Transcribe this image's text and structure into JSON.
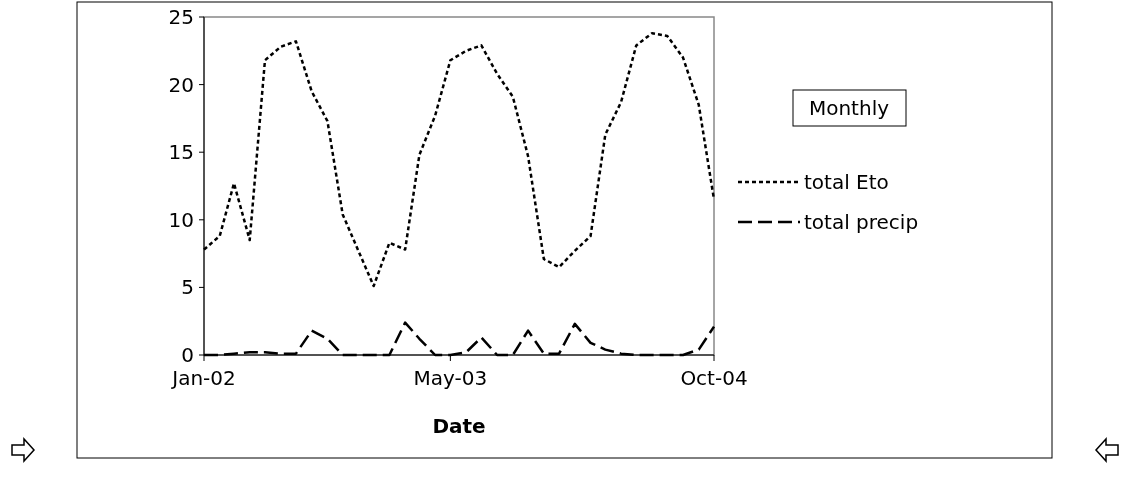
{
  "chart_data": {
    "type": "line",
    "xlabel": "Date",
    "legend_title": "Monthly",
    "legend": "right",
    "grid": false,
    "x": [
      "2002-01",
      "2002-02",
      "2002-03",
      "2002-04",
      "2002-05",
      "2002-06",
      "2002-07",
      "2002-08",
      "2002-09",
      "2002-10",
      "2002-11",
      "2002-12",
      "2003-01",
      "2003-02",
      "2003-03",
      "2003-04",
      "2003-05",
      "2003-06",
      "2003-07",
      "2003-08",
      "2003-09",
      "2003-10",
      "2003-11",
      "2003-12",
      "2004-01",
      "2004-02",
      "2004-03",
      "2004-04",
      "2004-05",
      "2004-06",
      "2004-07",
      "2004-08",
      "2004-09",
      "2004-10"
    ],
    "xlim": [
      "2002-01",
      "2004-10"
    ],
    "xticks": [
      {
        "value": "2002-01",
        "label": "Jan-02"
      },
      {
        "value": "2003-05",
        "label": "May-03"
      },
      {
        "value": "2004-10",
        "label": "Oct-04"
      }
    ],
    "ylim": [
      0,
      25
    ],
    "yticks": [
      0,
      5,
      10,
      15,
      20,
      25
    ],
    "series": [
      {
        "name": "total Eto",
        "color": "#000000",
        "line_style": "dotted",
        "values": [
          7.8,
          8.8,
          12.7,
          8.5,
          21.8,
          22.8,
          23.2,
          19.5,
          17.3,
          10.4,
          7.7,
          5.1,
          8.3,
          7.8,
          14.8,
          17.7,
          21.8,
          22.5,
          22.9,
          20.8,
          19.1,
          14.7,
          7.1,
          6.5,
          7.7,
          8.8,
          16.3,
          18.7,
          22.9,
          23.8,
          23.6,
          22.0,
          18.5,
          11.5
        ]
      },
      {
        "name": "total precip",
        "color": "#000000",
        "line_style": "dashed",
        "values": [
          0,
          0,
          0.1,
          0.2,
          0.2,
          0.1,
          0.1,
          1.8,
          1.2,
          0,
          0,
          0,
          0,
          2.4,
          1.2,
          0,
          0,
          0.2,
          1.3,
          0,
          0,
          1.8,
          0.1,
          0.1,
          2.3,
          0.9,
          0.4,
          0.1,
          0,
          0,
          0,
          0,
          0.4,
          2.1
        ]
      }
    ]
  }
}
